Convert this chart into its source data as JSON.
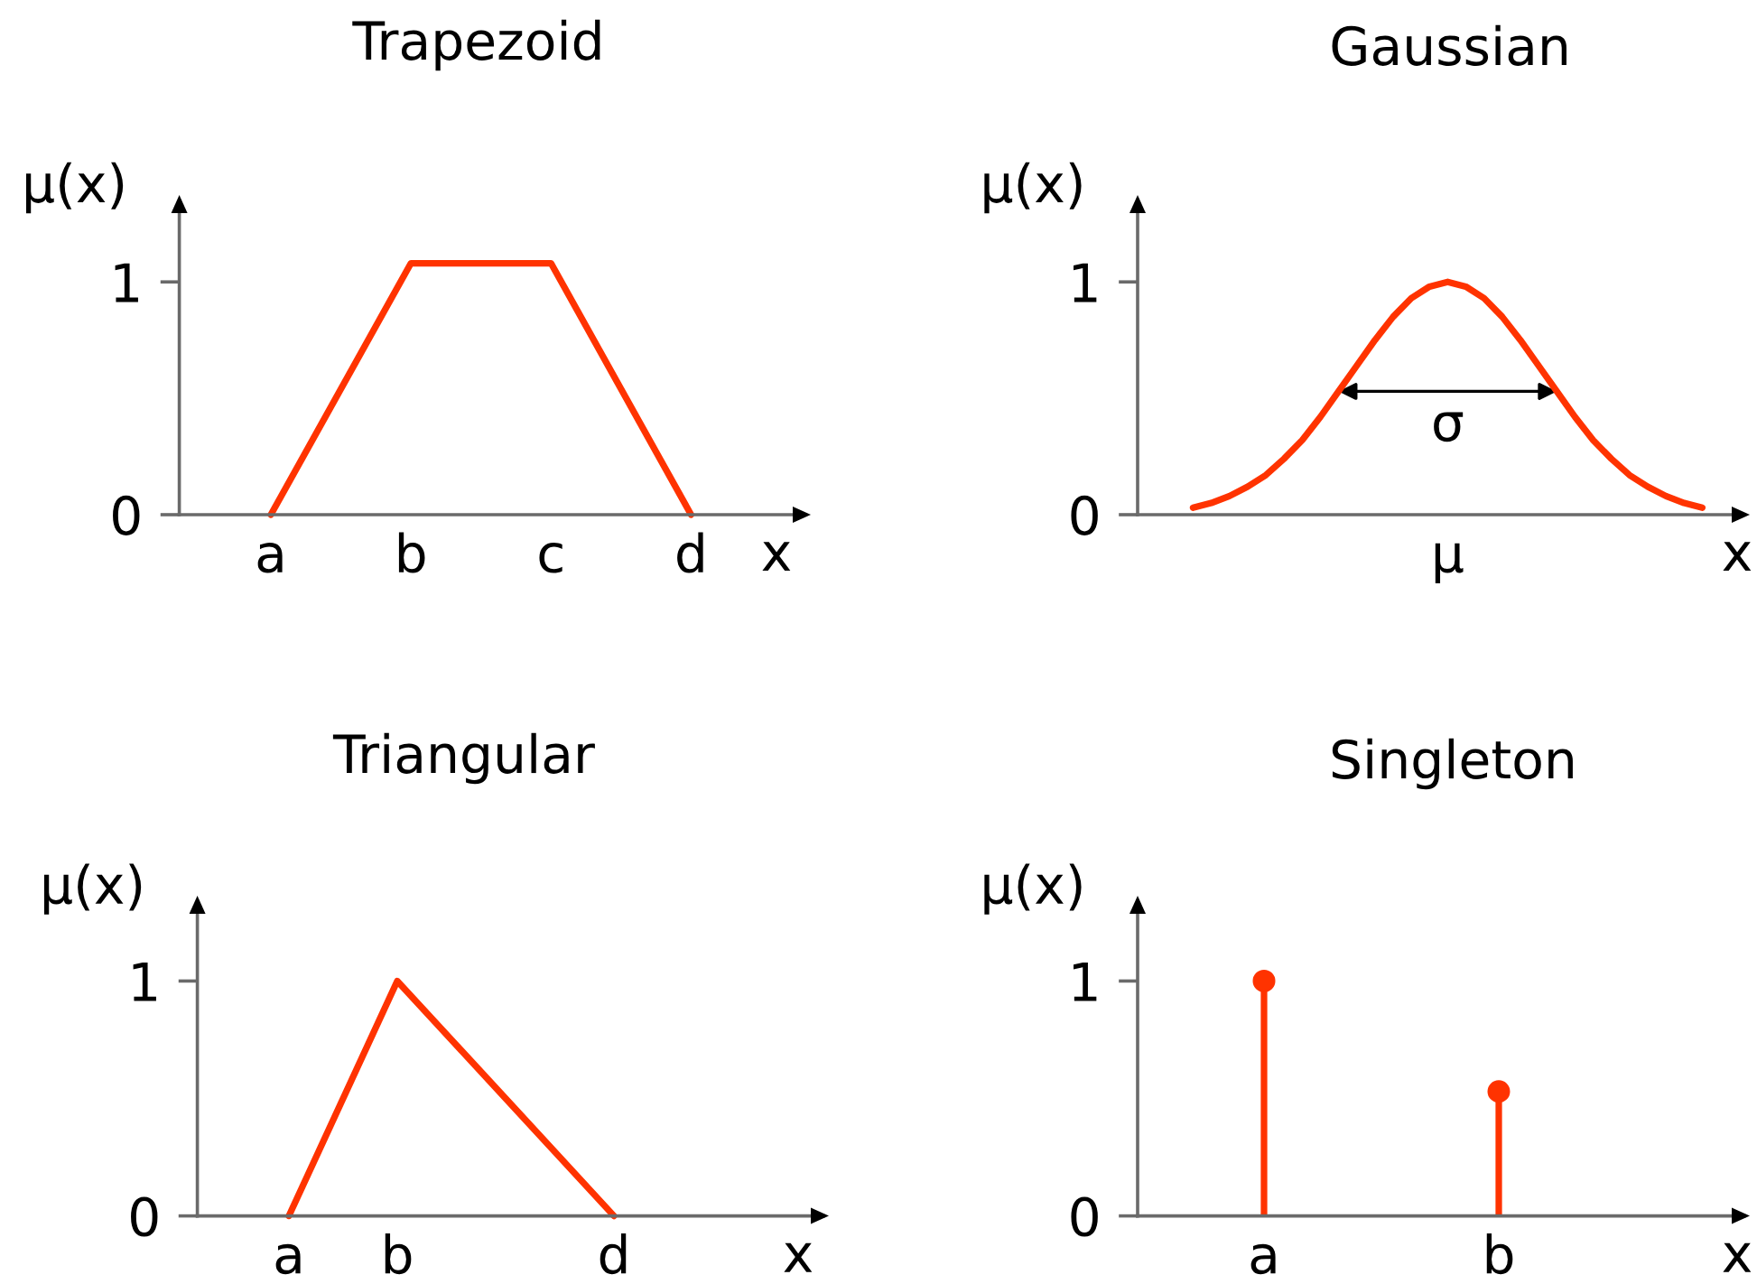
{
  "chart_data": [
    {
      "type": "line",
      "title": "Trapezoid",
      "xlabel": "x",
      "ylabel": "μ(x)",
      "categories": [
        "a",
        "b",
        "c",
        "d"
      ],
      "series": [
        {
          "color": "#ff3300",
          "values": [
            0,
            1.08,
            1.08,
            0
          ]
        }
      ],
      "ylim": [
        0,
        1.35
      ],
      "yticks": [
        0,
        1
      ]
    },
    {
      "type": "line",
      "title": "Gaussian",
      "xlabel": "x",
      "ylabel": "μ(x)",
      "categories": [
        null,
        null,
        null,
        null,
        null,
        null,
        null,
        null,
        null,
        null,
        null,
        null,
        null,
        null,
        "μ",
        null,
        null,
        null,
        null,
        null,
        null,
        null,
        null,
        null,
        null,
        null,
        null,
        null,
        null
      ],
      "series": [
        {
          "color": "#ff3300",
          "values": [
            0.03,
            0.05,
            0.08,
            0.12,
            0.17,
            0.24,
            0.32,
            0.42,
            0.53,
            0.64,
            0.75,
            0.85,
            0.93,
            0.98,
            1,
            0.98,
            0.93,
            0.85,
            0.75,
            0.64,
            0.53,
            0.42,
            0.32,
            0.24,
            0.17,
            0.12,
            0.08,
            0.05,
            0.03
          ]
        }
      ],
      "ylim": [
        0,
        1.35
      ],
      "yticks": [
        0,
        1
      ],
      "annotations": [
        "σ"
      ]
    },
    {
      "type": "line",
      "title": "Triangular",
      "xlabel": "x",
      "ylabel": "μ(x)",
      "categories": [
        "a",
        "b",
        null,
        "d"
      ],
      "series": [
        {
          "color": "#ff3300",
          "values": [
            0,
            1,
            0.5,
            0
          ]
        }
      ],
      "ylim": [
        0,
        1.34
      ],
      "yticks": [
        0,
        1
      ]
    },
    {
      "type": "lollipop",
      "title": "Singleton",
      "xlabel": "x",
      "ylabel": "μ(x)",
      "categories": [
        "a",
        "b"
      ],
      "series": [
        {
          "color": "#ff3300",
          "values": [
            1,
            0.53
          ]
        }
      ],
      "marker": "circle",
      "ylim": [
        0,
        1.34
      ],
      "yticks": [
        0,
        1
      ]
    }
  ]
}
